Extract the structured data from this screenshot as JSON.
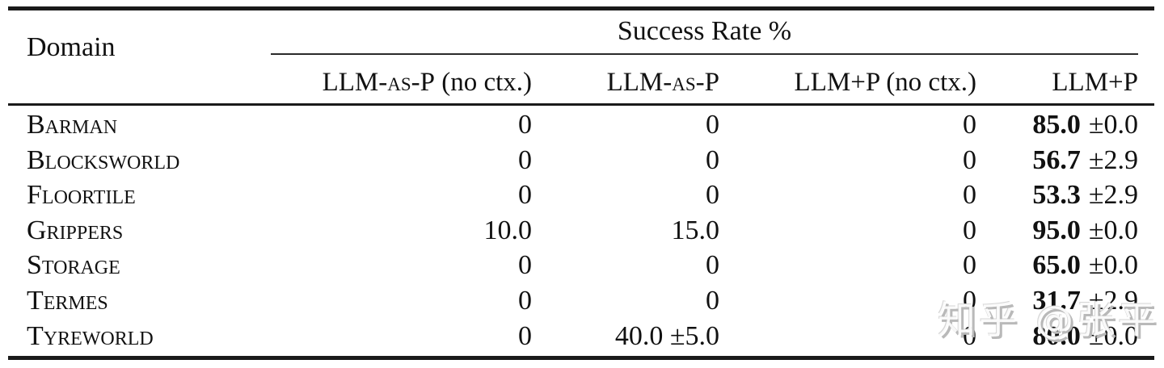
{
  "page": {
    "background": "#ffffff",
    "text_color": "#111111",
    "rule_color": "#1a1a1a"
  },
  "table": {
    "domain_header": "Domain",
    "group_header": "Success Rate %",
    "columns": [
      {
        "sc": "LLM-as-P",
        "rest": " (no ctx.)"
      },
      {
        "sc": "LLM-as-P",
        "rest": ""
      },
      {
        "sc": "",
        "rest": "LLM+P (no ctx.)"
      },
      {
        "sc": "",
        "rest": "LLM+P"
      }
    ],
    "rows": [
      {
        "domain": "Barman",
        "c1": "0",
        "c2": "0",
        "c3": "0",
        "c4_bold": "85.0",
        "c4_pm": "±0.0"
      },
      {
        "domain": "Blocksworld",
        "c1": "0",
        "c2": "0",
        "c3": "0",
        "c4_bold": "56.7",
        "c4_pm": "±2.9"
      },
      {
        "domain": "Floortile",
        "c1": "0",
        "c2": "0",
        "c3": "0",
        "c4_bold": "53.3",
        "c4_pm": "±2.9"
      },
      {
        "domain": "Grippers",
        "c1": "10.0",
        "c2": "15.0",
        "c3": "0",
        "c4_bold": "95.0",
        "c4_pm": "±0.0"
      },
      {
        "domain": "Storage",
        "c1": "0",
        "c2": "0",
        "c3": "0",
        "c4_bold": "65.0",
        "c4_pm": "±0.0"
      },
      {
        "domain": "Termes",
        "c1": "0",
        "c2": "0",
        "c3": "0",
        "c4_bold": "31.7",
        "c4_pm": "±2.9"
      },
      {
        "domain": "Tyreworld",
        "c1": "0",
        "c2": "40.0 ±5.0",
        "c3": "0",
        "c4_bold": "80.0",
        "c4_pm": "±0.0"
      }
    ]
  },
  "watermark": {
    "text": "知乎 @张平",
    "color": "#bdbdbd"
  }
}
